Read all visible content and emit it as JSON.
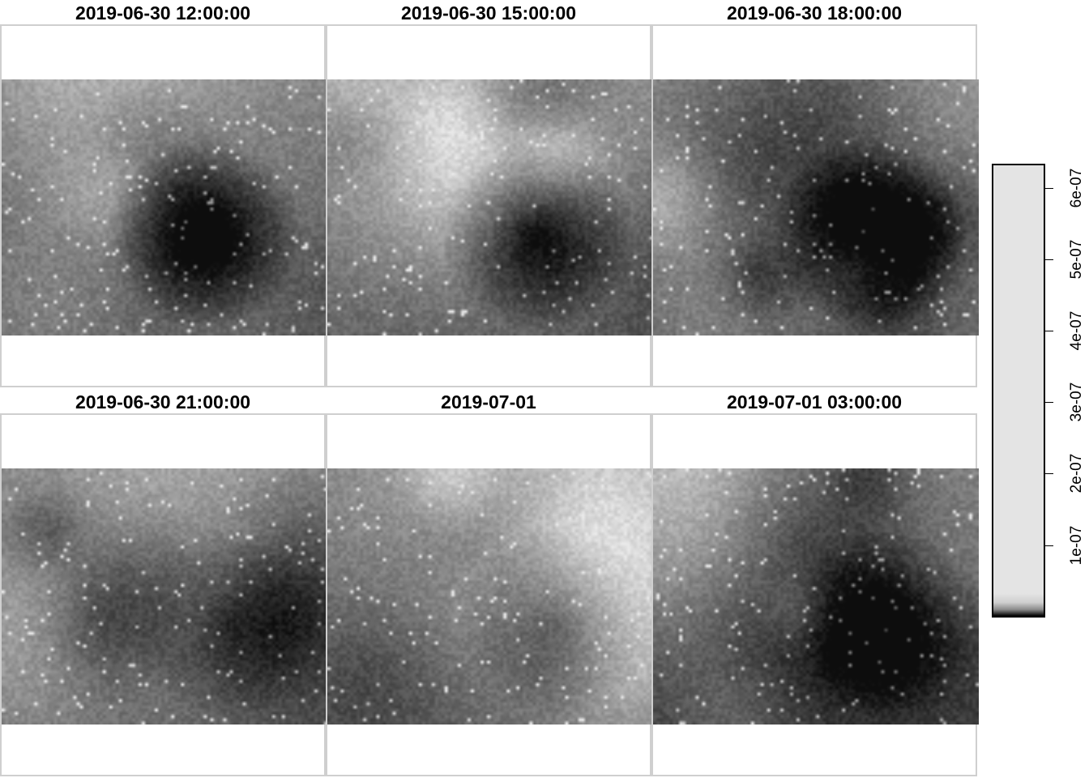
{
  "panels": [
    {
      "title": "2019-06-30 12:00:00"
    },
    {
      "title": "2019-06-30 15:00:00"
    },
    {
      "title": "2019-06-30 18:00:00"
    },
    {
      "title": "2019-06-30 21:00:00"
    },
    {
      "title": "2019-07-01"
    },
    {
      "title": "2019-07-01 03:00:00"
    }
  ],
  "legend": {
    "ticks": [
      "6e-07",
      "5e-07",
      "4e-07",
      "3e-07",
      "2e-07",
      "1e-07"
    ],
    "colors": {
      "high": "#e4e4e4",
      "low": "#000000"
    }
  }
}
